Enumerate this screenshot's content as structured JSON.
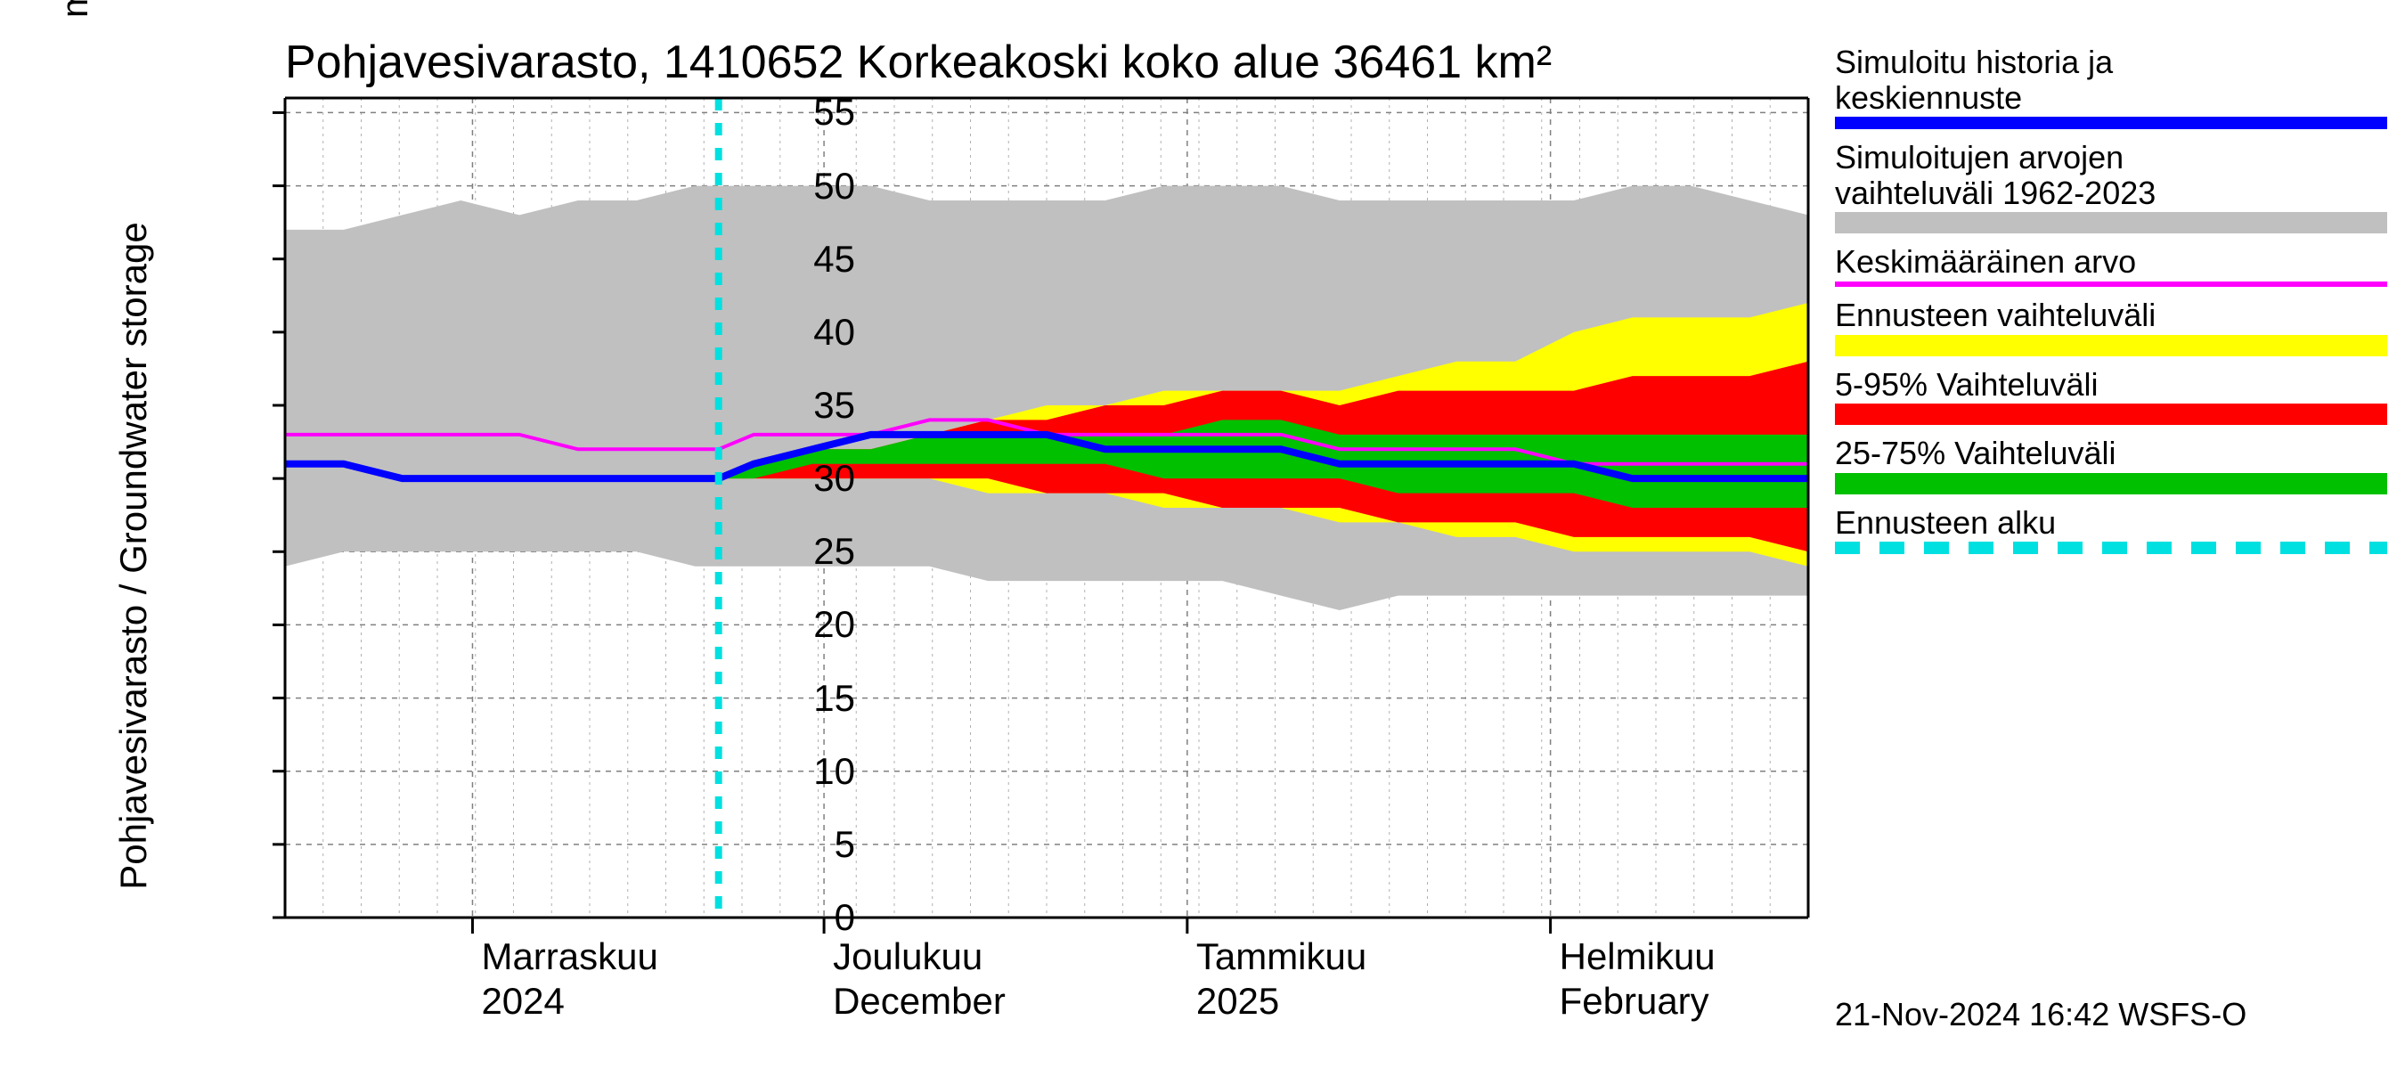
{
  "chart": {
    "type": "area-line-forecast",
    "title": "Pohjavesivarasto, 1410652 Korkeakoski koko alue 36461 km²",
    "ylabel": "Pohjavesivarasto / Groundwater storage",
    "yunit": "mm",
    "background_color": "#ffffff",
    "axis_color": "#000000",
    "axis_width": 3,
    "grid_major_color": "#808080",
    "grid_major_dash": "6,6",
    "grid_minor_color": "#b0b0b0",
    "grid_minor_dash": "3,5",
    "title_fontsize": 52,
    "label_fontsize": 42,
    "tick_fontsize": 42,
    "legend_fontsize": 36,
    "ylim": [
      0,
      56
    ],
    "yticks": [
      0,
      5,
      10,
      15,
      20,
      25,
      30,
      35,
      40,
      45,
      50,
      55
    ],
    "x_days": 130,
    "x_major_ticks": [
      {
        "day": 16,
        "label1": "Marraskuu",
        "label2": "2024"
      },
      {
        "day": 46,
        "label1": "Joulukuu",
        "label2": "December"
      },
      {
        "day": 77,
        "label1": "Tammikuu",
        "label2": "2025"
      },
      {
        "day": 108,
        "label1": "Helmikuu",
        "label2": "February"
      }
    ],
    "x_minor_step": 3.25,
    "forecast_start_day": 37,
    "colors": {
      "hist_range": "#c0c0c0",
      "forecast_range": "#ffff00",
      "p5_95": "#ff0000",
      "p25_75": "#00c000",
      "median": "#0000ff",
      "mean": "#ff00ff",
      "forecast_start": "#00e0e0"
    },
    "line_widths": {
      "median": 8,
      "mean": 4,
      "forecast_start": 8
    },
    "forecast_start_dash": "14,14",
    "x_samples": [
      0,
      5,
      10,
      15,
      20,
      25,
      30,
      35,
      37,
      40,
      45,
      50,
      55,
      60,
      65,
      70,
      75,
      80,
      85,
      90,
      95,
      100,
      105,
      110,
      115,
      120,
      125,
      130
    ],
    "series": {
      "hist_hi": [
        47,
        47,
        48,
        49,
        48,
        49,
        49,
        50,
        50,
        50,
        50,
        50,
        49,
        49,
        49,
        49,
        50,
        50,
        50,
        49,
        49,
        49,
        49,
        49,
        50,
        50,
        49,
        48
      ],
      "hist_lo": [
        24,
        25,
        25,
        25,
        25,
        25,
        25,
        24,
        24,
        24,
        24,
        24,
        24,
        23,
        23,
        23,
        23,
        23,
        22,
        21,
        22,
        22,
        22,
        22,
        22,
        22,
        22,
        22
      ],
      "fc_hi": [
        null,
        null,
        null,
        null,
        null,
        null,
        null,
        null,
        30,
        31,
        32,
        32,
        33,
        34,
        35,
        35,
        36,
        36,
        36,
        36,
        37,
        38,
        38,
        40,
        41,
        41,
        41,
        42
      ],
      "fc_lo": [
        null,
        null,
        null,
        null,
        null,
        null,
        null,
        null,
        30,
        30,
        30,
        30,
        30,
        29,
        29,
        29,
        28,
        28,
        28,
        27,
        27,
        26,
        26,
        25,
        25,
        25,
        25,
        24
      ],
      "p95": [
        null,
        null,
        null,
        null,
        null,
        null,
        null,
        null,
        30,
        31,
        32,
        32,
        33,
        34,
        34,
        35,
        35,
        36,
        36,
        35,
        36,
        36,
        36,
        36,
        37,
        37,
        37,
        38
      ],
      "p5": [
        null,
        null,
        null,
        null,
        null,
        null,
        null,
        null,
        30,
        30,
        30,
        30,
        30,
        30,
        29,
        29,
        29,
        28,
        28,
        28,
        27,
        27,
        27,
        26,
        26,
        26,
        26,
        25
      ],
      "p75": [
        null,
        null,
        null,
        null,
        null,
        null,
        null,
        null,
        30,
        31,
        32,
        32,
        33,
        33,
        33,
        33,
        33,
        34,
        34,
        33,
        33,
        33,
        33,
        33,
        33,
        33,
        33,
        33
      ],
      "p25": [
        null,
        null,
        null,
        null,
        null,
        null,
        null,
        null,
        30,
        30,
        31,
        31,
        31,
        31,
        31,
        31,
        30,
        30,
        30,
        30,
        29,
        29,
        29,
        29,
        28,
        28,
        28,
        28
      ],
      "median": [
        31,
        31,
        30,
        30,
        30,
        30,
        30,
        30,
        30,
        31,
        32,
        33,
        33,
        33,
        33,
        32,
        32,
        32,
        32,
        31,
        31,
        31,
        31,
        31,
        30,
        30,
        30,
        30
      ],
      "mean": [
        33,
        33,
        33,
        33,
        33,
        32,
        32,
        32,
        32,
        33,
        33,
        33,
        34,
        34,
        33,
        33,
        33,
        33,
        33,
        32,
        32,
        32,
        32,
        31,
        31,
        31,
        31,
        31
      ]
    }
  },
  "legend": [
    {
      "text": "Simuloitu historia ja\nkeskiennuste",
      "type": "line",
      "color": "#0000ff",
      "width": 14
    },
    {
      "text": "Simuloitujen arvojen\nvaihteluväli 1962-2023",
      "type": "block",
      "color": "#c0c0c0"
    },
    {
      "text": "Keskimääräinen arvo",
      "type": "line",
      "color": "#ff00ff",
      "width": 6
    },
    {
      "text": "Ennusteen vaihteluväli",
      "type": "block",
      "color": "#ffff00"
    },
    {
      "text": "5-95% Vaihteluväli",
      "type": "block",
      "color": "#ff0000"
    },
    {
      "text": "25-75% Vaihteluväli",
      "type": "block",
      "color": "#00c000"
    },
    {
      "text": "Ennusteen alku",
      "type": "dash",
      "color": "#00e0e0",
      "width": 14
    }
  ],
  "timestamp": "21-Nov-2024 16:42 WSFS-O"
}
